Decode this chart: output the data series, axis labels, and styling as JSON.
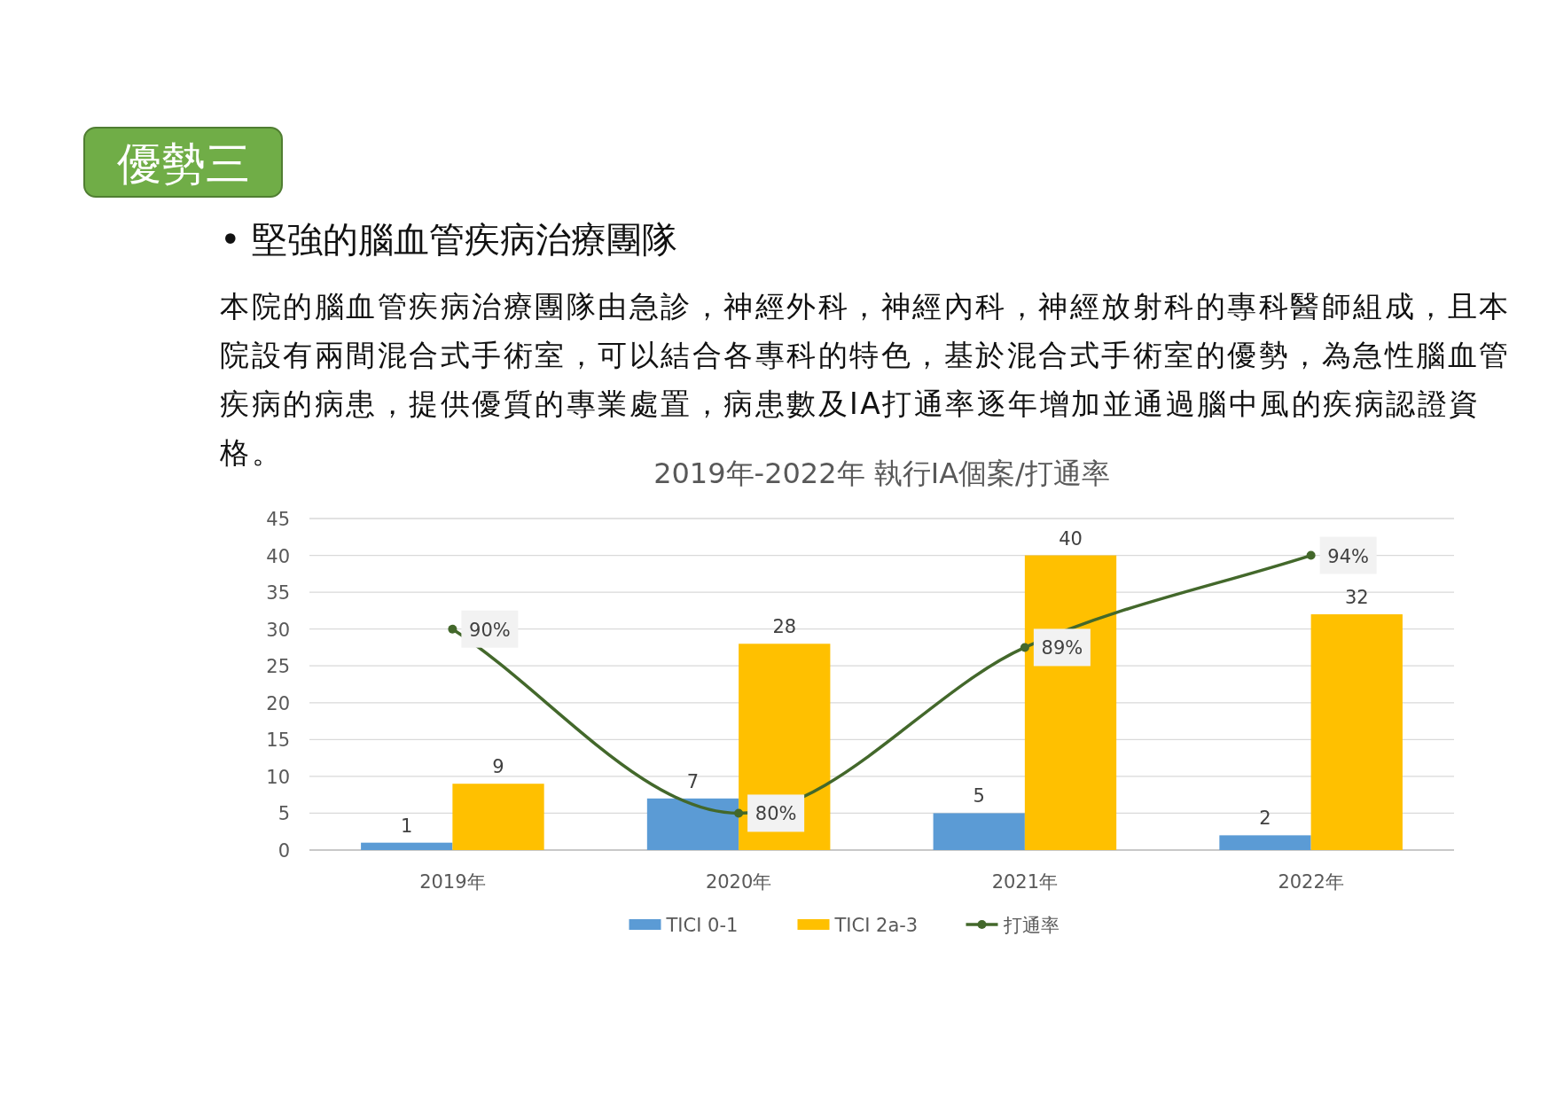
{
  "chart_data": {
    "type": "bar",
    "title": "2019年-2022年 執行IA個案/打通率",
    "annotations": [
      "優勢三",
      "• 堅強的腦血管疾病治療團隊",
      "本院的腦血管疾病治療團隊由急診，神經外科，神經內科，神經放射科的專科醫師組成，且本院設有兩間混合式手術室，可以結合各專科的特色，基於混合式手術室的優勢，為急性腦血管疾病的病患，提供優質的專業處置，病患數及IA打通率逐年增加並通過腦中風的疾病認證資格。"
    ],
    "categories": [
      "2019年",
      "2020年",
      "2021年",
      "2022年"
    ],
    "series": [
      {
        "name": "TICI 0-1",
        "color": "#5b9bd5",
        "values": [
          1,
          7,
          5,
          2
        ]
      },
      {
        "name": "TICI 2a-3",
        "color": "#ffc000",
        "values": [
          9,
          28,
          40,
          32
        ]
      },
      {
        "name": "打通率",
        "type": "line",
        "axis": "y2",
        "color": "#43682b",
        "values": [
          90,
          80,
          89,
          94
        ],
        "value_labels": [
          "90%",
          "80%",
          "89%",
          "94%"
        ]
      }
    ],
    "ylim": [
      0,
      45
    ],
    "yticks": [
      0,
      5,
      10,
      15,
      20,
      25,
      30,
      35,
      40,
      45
    ],
    "y2lim": [
      78,
      96
    ],
    "tick_labels": "xy",
    "data_labels": true,
    "grid": "y",
    "legend": "bottom",
    "marker": "circle"
  }
}
